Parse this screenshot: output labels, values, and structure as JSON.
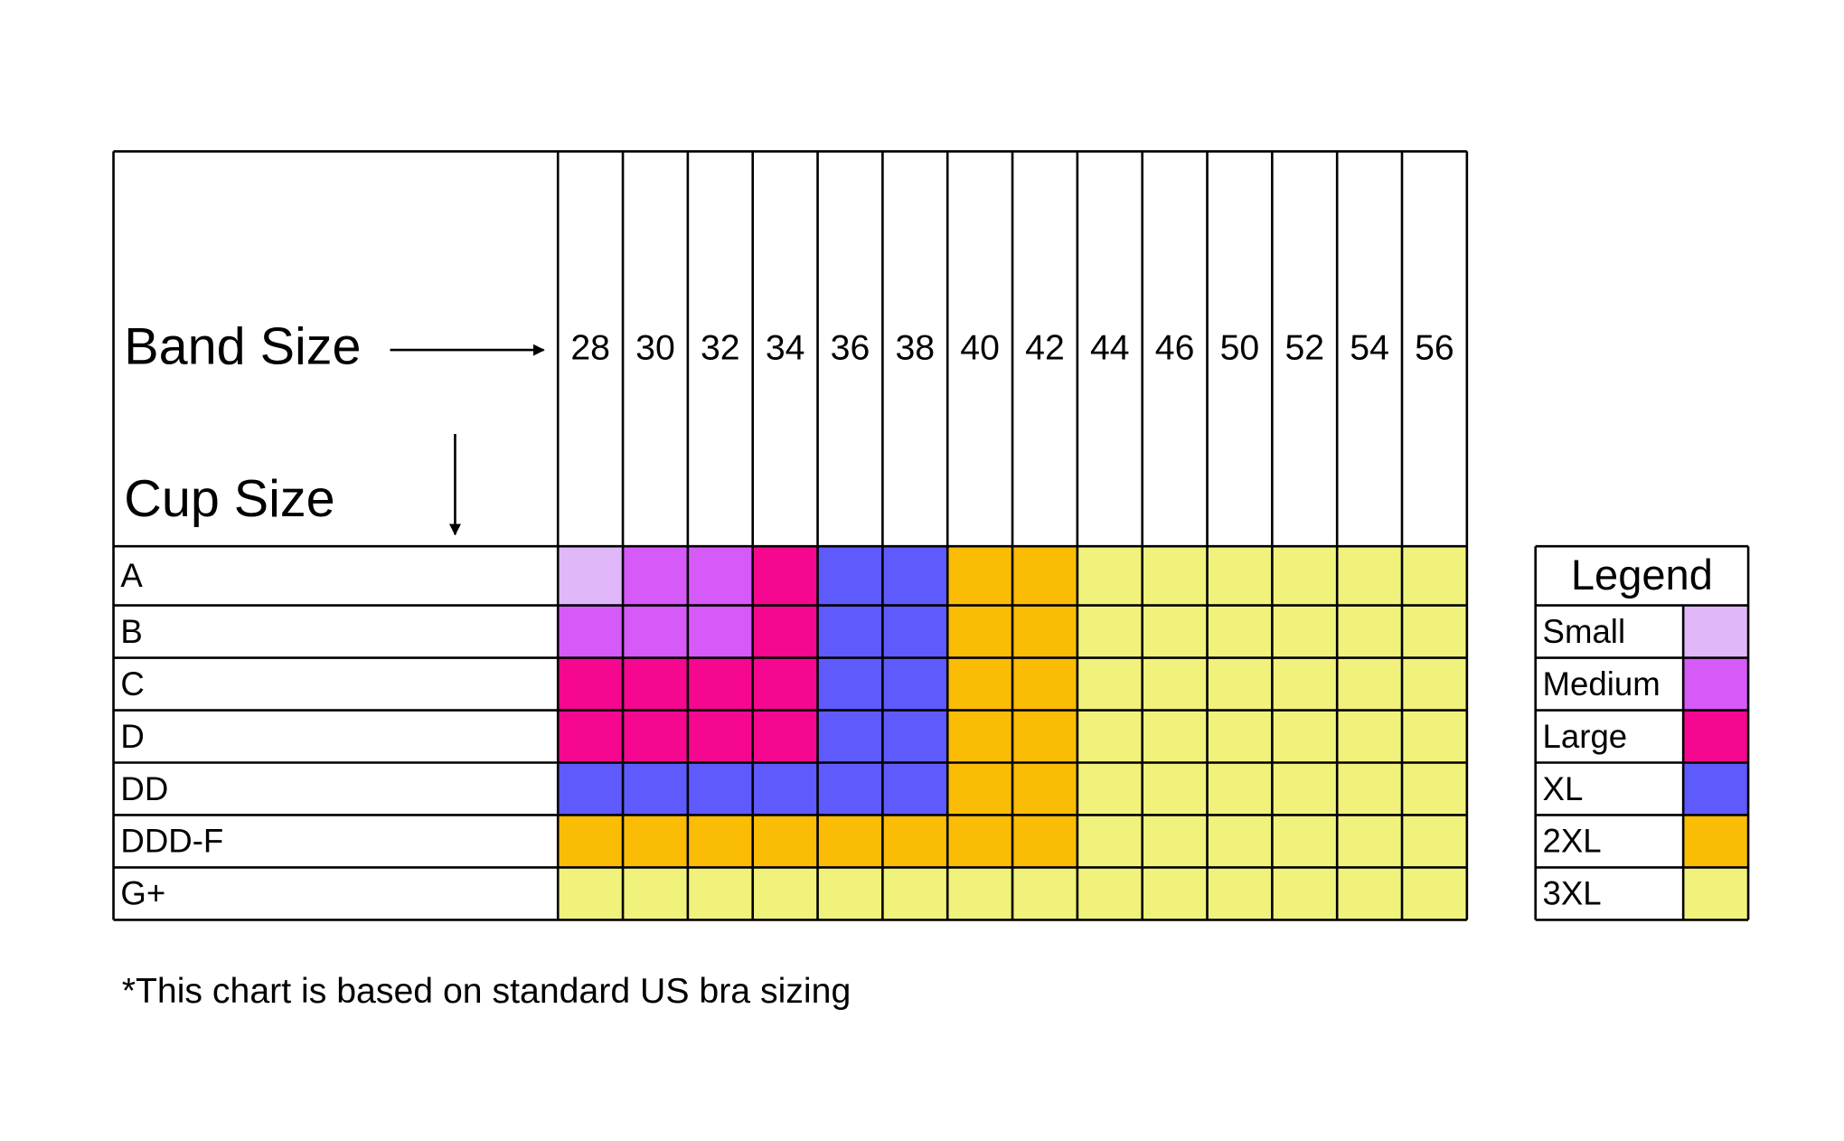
{
  "header": {
    "band_label": "Band Size",
    "cup_label": "Cup Size"
  },
  "band_sizes": [
    "28",
    "30",
    "32",
    "34",
    "36",
    "38",
    "40",
    "42",
    "44",
    "46",
    "50",
    "52",
    "54",
    "56"
  ],
  "rows": [
    {
      "cup": "A",
      "cells": [
        "Small",
        "Medium",
        "Medium",
        "Large",
        "XL",
        "XL",
        "2XL",
        "2XL",
        "3XL",
        "3XL",
        "3XL",
        "3XL",
        "3XL",
        "3XL"
      ]
    },
    {
      "cup": "B",
      "cells": [
        "Medium",
        "Medium",
        "Medium",
        "Large",
        "XL",
        "XL",
        "2XL",
        "2XL",
        "3XL",
        "3XL",
        "3XL",
        "3XL",
        "3XL",
        "3XL"
      ]
    },
    {
      "cup": "C",
      "cells": [
        "Large",
        "Large",
        "Large",
        "Large",
        "XL",
        "XL",
        "2XL",
        "2XL",
        "3XL",
        "3XL",
        "3XL",
        "3XL",
        "3XL",
        "3XL"
      ]
    },
    {
      "cup": "D",
      "cells": [
        "Large",
        "Large",
        "Large",
        "Large",
        "XL",
        "XL",
        "2XL",
        "2XL",
        "3XL",
        "3XL",
        "3XL",
        "3XL",
        "3XL",
        "3XL"
      ]
    },
    {
      "cup": "DD",
      "cells": [
        "XL",
        "XL",
        "XL",
        "XL",
        "XL",
        "XL",
        "2XL",
        "2XL",
        "3XL",
        "3XL",
        "3XL",
        "3XL",
        "3XL",
        "3XL"
      ]
    },
    {
      "cup": "DDD-F",
      "cells": [
        "2XL",
        "2XL",
        "2XL",
        "2XL",
        "2XL",
        "2XL",
        "2XL",
        "2XL",
        "3XL",
        "3XL",
        "3XL",
        "3XL",
        "3XL",
        "3XL"
      ]
    },
    {
      "cup": "G+",
      "cells": [
        "3XL",
        "3XL",
        "3XL",
        "3XL",
        "3XL",
        "3XL",
        "3XL",
        "3XL",
        "3XL",
        "3XL",
        "3XL",
        "3XL",
        "3XL",
        "3XL"
      ]
    }
  ],
  "legend": {
    "title": "Legend",
    "items": [
      {
        "name": "Small",
        "color": "#e0b8fa"
      },
      {
        "name": "Medium",
        "color": "#d65af7"
      },
      {
        "name": "Large",
        "color": "#f5078f"
      },
      {
        "name": "XL",
        "color": "#5e5afc"
      },
      {
        "name": "2XL",
        "color": "#fbbc05"
      },
      {
        "name": "3XL",
        "color": "#f0f27c"
      }
    ]
  },
  "footnote": "*This chart is based on standard US bra sizing"
}
